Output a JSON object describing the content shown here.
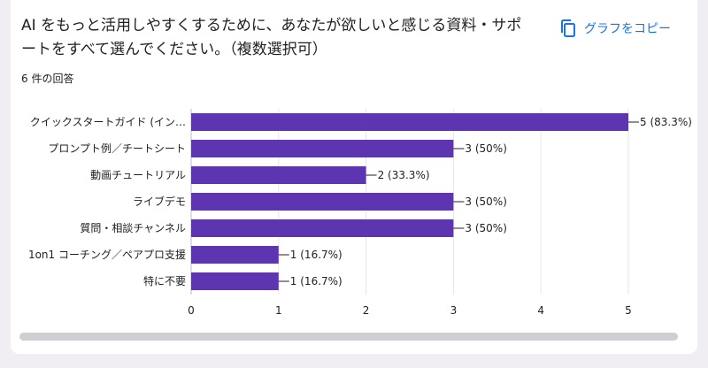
{
  "header": {
    "title": "AI をもっと活用しやすくするために、あなたが欲しいと感じる資料・サポートをすべて選んでください。（複数選択可）",
    "copy_label": "グラフをコピー",
    "response_count": "6 件の回答"
  },
  "colors": {
    "bar": "#5e35b1",
    "accent": "#1a73e8"
  },
  "icons": {
    "copy": "copy-icon"
  },
  "chart_data": {
    "type": "bar",
    "orientation": "horizontal",
    "categories": [
      "クイックスタートガイド (イン…",
      "プロンプト例／チートシート",
      "動画チュートリアル",
      "ライブデモ",
      "質問・相談チャンネル",
      "1on1 コーチング／ペアプロ支援",
      "特に不要"
    ],
    "values": [
      5,
      3,
      2,
      3,
      3,
      1,
      1
    ],
    "data_labels": [
      "5 (83.3%)",
      "3 (50%)",
      "2 (33.3%)",
      "3 (50%)",
      "3 (50%)",
      "1 (16.7%)",
      "1 (16.7%)"
    ],
    "xticks": [
      "0",
      "1",
      "2",
      "3",
      "4",
      "5"
    ],
    "xlim": [
      0,
      5
    ],
    "grid": true,
    "legend": "none"
  }
}
